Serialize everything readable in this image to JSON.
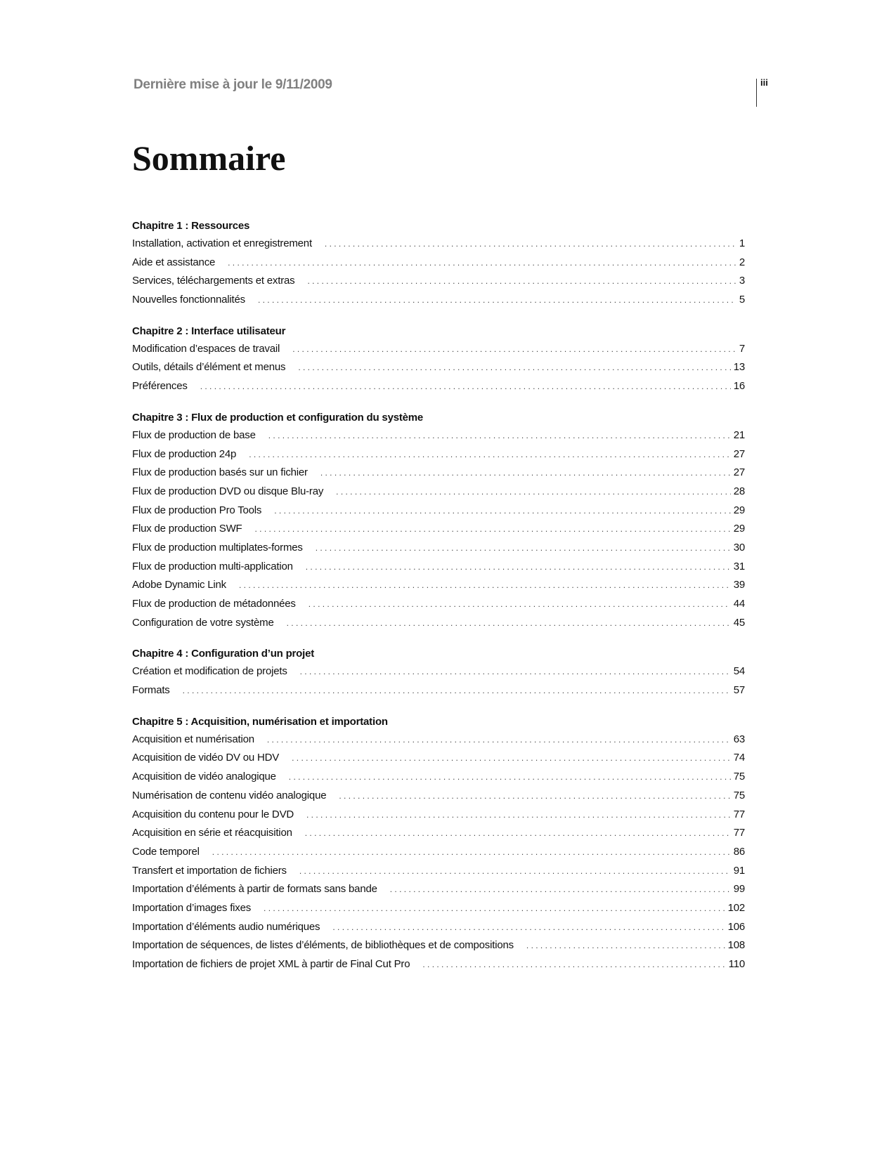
{
  "header": {
    "date": "Dernière mise à jour le 9/11/2009",
    "page_number": "iii"
  },
  "title": "Sommaire",
  "chapters": [
    {
      "title": "Chapitre 1 : Ressources",
      "entries": [
        {
          "label": "Installation, activation et enregistrement",
          "page": "1"
        },
        {
          "label": "Aide et assistance",
          "page": "2"
        },
        {
          "label": "Services, téléchargements et extras",
          "page": "3"
        },
        {
          "label": "Nouvelles fonctionnalités",
          "page": "5"
        }
      ]
    },
    {
      "title": "Chapitre 2 : Interface utilisateur",
      "entries": [
        {
          "label": "Modification d’espaces de travail",
          "page": "7"
        },
        {
          "label": "Outils, détails d’élément et menus",
          "page": "13"
        },
        {
          "label": "Préférences",
          "page": "16"
        }
      ]
    },
    {
      "title": "Chapitre 3 : Flux de production et configuration du système",
      "entries": [
        {
          "label": "Flux de production de base",
          "page": "21"
        },
        {
          "label": "Flux de production 24p",
          "page": "27"
        },
        {
          "label": "Flux de production basés sur un fichier",
          "page": "27"
        },
        {
          "label": "Flux de production DVD ou disque Blu-ray",
          "page": "28"
        },
        {
          "label": "Flux de production Pro Tools",
          "page": "29"
        },
        {
          "label": "Flux de production SWF",
          "page": "29"
        },
        {
          "label": "Flux de production multiplates-formes",
          "page": "30"
        },
        {
          "label": "Flux de production multi-application",
          "page": "31"
        },
        {
          "label": "Adobe Dynamic Link",
          "page": "39"
        },
        {
          "label": "Flux de production de métadonnées",
          "page": "44"
        },
        {
          "label": "Configuration de votre système",
          "page": "45"
        }
      ]
    },
    {
      "title": "Chapitre 4 : Configuration d’un projet",
      "entries": [
        {
          "label": "Création et modification de projets",
          "page": "54"
        },
        {
          "label": "Formats",
          "page": "57"
        }
      ]
    },
    {
      "title": "Chapitre 5 : Acquisition, numérisation et importation",
      "entries": [
        {
          "label": "Acquisition et numérisation",
          "page": "63"
        },
        {
          "label": "Acquisition de vidéo DV ou HDV",
          "page": "74"
        },
        {
          "label": "Acquisition de vidéo analogique",
          "page": "75"
        },
        {
          "label": "Numérisation de contenu vidéo analogique",
          "page": "75"
        },
        {
          "label": "Acquisition du contenu pour le DVD",
          "page": "77"
        },
        {
          "label": "Acquisition en série et réacquisition",
          "page": "77"
        },
        {
          "label": "Code temporel",
          "page": "86"
        },
        {
          "label": "Transfert et importation de fichiers",
          "page": "91"
        },
        {
          "label": "Importation d’éléments à partir de formats sans bande",
          "page": "99"
        },
        {
          "label": "Importation d’images fixes",
          "page": "102"
        },
        {
          "label": "Importation d’éléments audio numériques",
          "page": "106"
        },
        {
          "label": "Importation de séquences, de listes d’éléments, de bibliothèques et de compositions",
          "page": "108"
        },
        {
          "label": "Importation de fichiers de projet XML à partir de Final Cut Pro",
          "page": "110"
        }
      ]
    }
  ]
}
